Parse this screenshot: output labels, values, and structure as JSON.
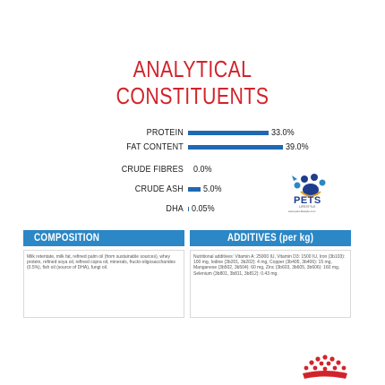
{
  "title": {
    "line1": "ANALYTICAL",
    "line2": "CONSTITUENTS"
  },
  "colors": {
    "title_red": "#d2232a",
    "bar_blue": "#1f69b3",
    "header_blue": "#2b87c6"
  },
  "analysis": {
    "rows": [
      {
        "label": "PROTEIN",
        "value": "33.0%",
        "percent": 33.0
      },
      {
        "label": "FAT CONTENT",
        "value": "39.0%",
        "percent": 39.0
      },
      {
        "label": "CRUDE FIBRES",
        "value": "0.0%",
        "percent": 0.0
      },
      {
        "label": "CRUDE ASH",
        "value": "5.0%",
        "percent": 5.0
      },
      {
        "label": "DHA",
        "value": "0.05%",
        "percent": 0.05
      }
    ]
  },
  "watermark": {
    "brand": "PETS",
    "sub": "LIFESTYLE",
    "url": "www.pets-lifestyle.com"
  },
  "composition": {
    "header": "COMPOSITION",
    "text": "Milk retentate, milk fat, refined palm oil (from sustainable sources), whey protein, refined soya oil, refined copra oil, minerals, fructo-oligosaccharides (0.5%), fish oil (source of DHA), fungi oil."
  },
  "additives": {
    "header": "ADDITIVES (per kg)",
    "text": "Nutritional additives: Vitamin A: 25000 IU, Vitamin D3: 1500 IU, Iron (3b103): 100 mg, Iodine (3b201, 3b202): 4 mg, Copper (3b405, 3b406): 15 mg, Manganese (3b502, 3b504): 60 mg, Zinc (3b603, 3b605, 3b606): 160 mg, Selenium (3b801, 3b811, 3b812): 0.43 mg."
  },
  "brand_logo": {
    "name": "royal-canin-crown"
  }
}
